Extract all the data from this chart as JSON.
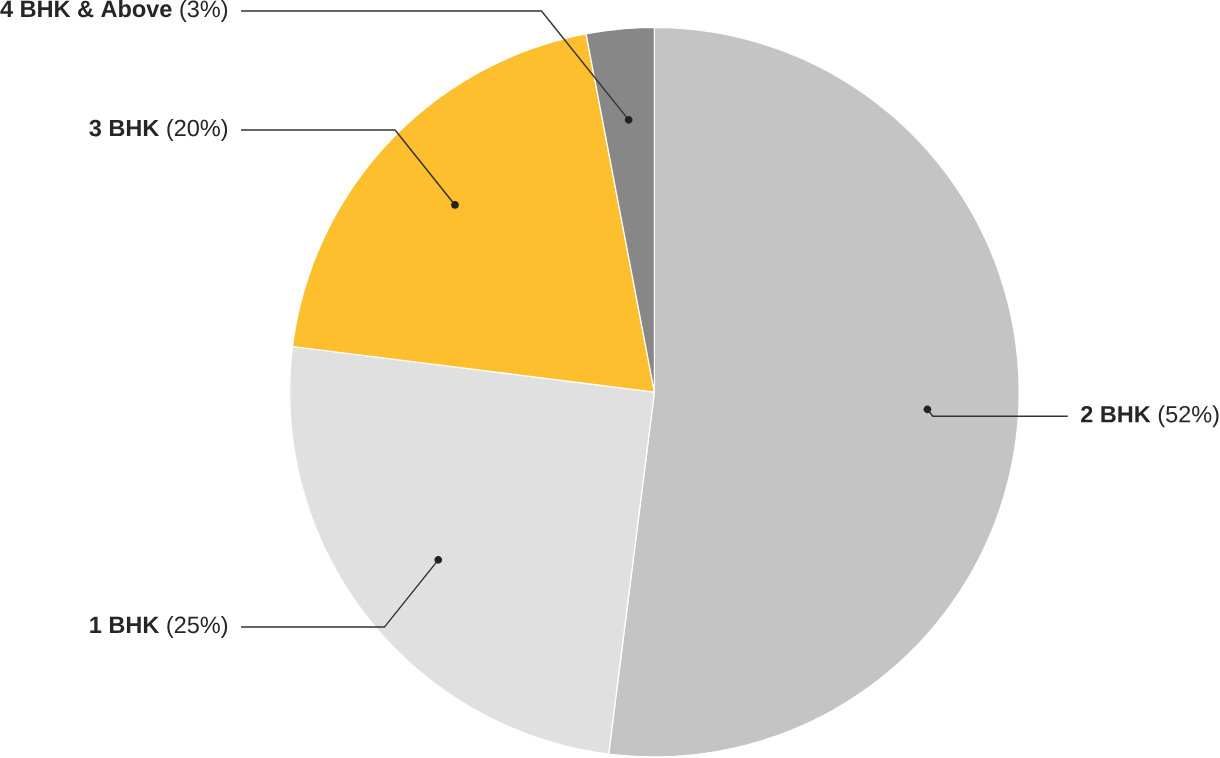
{
  "chart_data": {
    "type": "pie",
    "categories": [
      "2 BHK",
      "1 BHK",
      "3 BHK",
      "4 BHK & Above"
    ],
    "values": [
      52,
      25,
      20,
      3
    ],
    "colors": [
      "#c4c4c4",
      "#e0e0e0",
      "#fdbf2d",
      "#878787"
    ],
    "value_labels": [
      "(52%)",
      "(25%)",
      "(20%)",
      "(3%)"
    ]
  }
}
